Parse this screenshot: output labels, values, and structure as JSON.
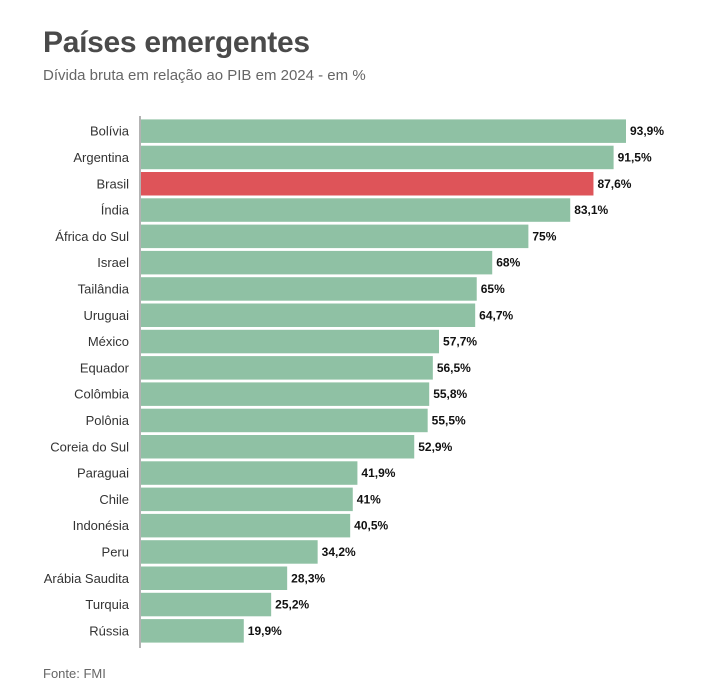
{
  "header": {
    "title": "Países emergentes",
    "subtitle": "Dívida bruta em relação ao PIB em 2024 - em %"
  },
  "footer": {
    "source": "Fonte: FMI"
  },
  "colors": {
    "bar": "#8fc1a4",
    "highlight": "#de5459",
    "axis": "#9a9a9a"
  },
  "chart_data": {
    "type": "bar",
    "orientation": "horizontal",
    "title": "Países emergentes",
    "subtitle": "Dívida bruta em relação ao PIB em 2024 - em %",
    "xlabel": "",
    "ylabel": "",
    "xlim": [
      0,
      100
    ],
    "grid": false,
    "legend": "none",
    "highlight": "Brasil",
    "categories": [
      "Bolívia",
      "Argentina",
      "Brasil",
      "Índia",
      "África do Sul",
      "Israel",
      "Tailândia",
      "Uruguai",
      "México",
      "Equador",
      "Colômbia",
      "Polônia",
      "Coreia do Sul",
      "Paraguai",
      "Chile",
      "Indonésia",
      "Peru",
      "Arábia Saudita",
      "Turquia",
      "Rússia"
    ],
    "values": [
      93.9,
      91.5,
      87.6,
      83.1,
      75,
      68,
      65,
      64.7,
      57.7,
      56.5,
      55.8,
      55.5,
      52.9,
      41.9,
      41,
      40.5,
      34.2,
      28.3,
      25.2,
      19.9
    ],
    "value_labels": [
      "93,9%",
      "91,5%",
      "87,6%",
      "83,1%",
      "75%",
      "68%",
      "65%",
      "64,7%",
      "57,7%",
      "56,5%",
      "55,8%",
      "55,5%",
      "52,9%",
      "41,9%",
      "41%",
      "40,5%",
      "34,2%",
      "28,3%",
      "25,2%",
      "19,9%"
    ]
  }
}
